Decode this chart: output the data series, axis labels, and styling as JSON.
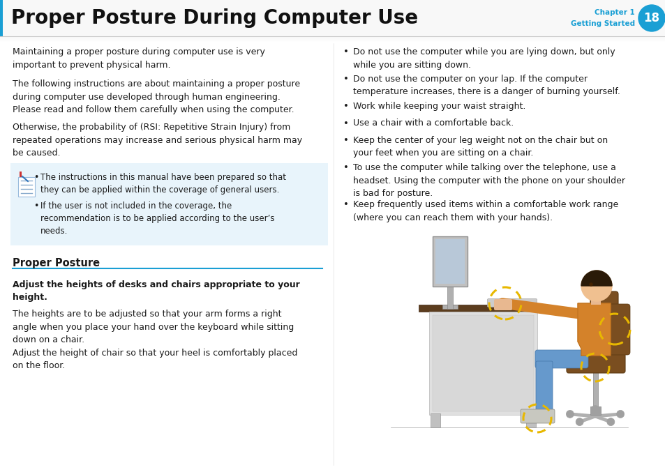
{
  "title": "Proper Posture During Computer Use",
  "chapter_label": "Chapter 1",
  "chapter_sub": "Getting Started",
  "chapter_num": "18",
  "header_blue": "#1a9fd4",
  "bg_color": "#ffffff",
  "note_bg": "#e8f4fb",
  "divider_color": "#1a9fd4",
  "left_para1": "Maintaining a proper posture during computer use is very\nimportant to prevent physical harm.",
  "left_para2": "The following instructions are about maintaining a proper posture\nduring computer use developed through human engineering.\nPlease read and follow them carefully when using the computer.",
  "left_para3": "Otherwise, the probability of (RSI: Repetitive Strain Injury) from\nrepeated operations may increase and serious physical harm may\nbe caused.",
  "note_bullets": [
    "The instructions in this manual have been prepared so that\nthey can be applied within the coverage of general users.",
    "If the user is not included in the coverage, the\nrecommendation is to be applied according to the user’s\nneeds."
  ],
  "proper_posture_title": "Proper Posture",
  "adjust_title": "Adjust the heights of desks and chairs appropriate to your\nheight.",
  "left_para4": "The heights are to be adjusted so that your arm forms a right\nangle when you place your hand over the keyboard while sitting\ndown on a chair.",
  "left_para5": "Adjust the height of chair so that your heel is comfortably placed\non the floor.",
  "right_bullets": [
    "Do not use the computer while you are lying down, but only\nwhile you are sitting down.",
    "Do not use the computer on your lap. If the computer\ntemperature increases, there is a danger of burning yourself.",
    "Work while keeping your waist straight.",
    "Use a chair with a comfortable back.",
    "Keep the center of your leg weight not on the chair but on\nyour feet when you are sitting on a chair.",
    "To use the computer while talking over the telephone, use a\nheadset. Using the computer with the phone on your shoulder\nis bad for posture.",
    "Keep frequently used items within a comfortable work range\n(where you can reach them with your hands)."
  ],
  "text_color": "#1a1a1a",
  "body_fontsize": 9.0,
  "title_fontsize": 20
}
